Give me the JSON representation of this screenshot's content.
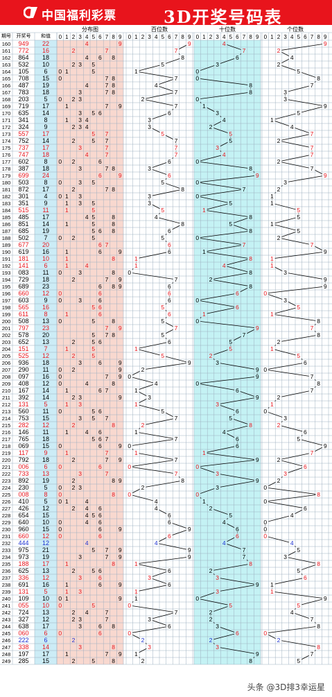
{
  "header": {
    "brand": "中国福利彩票",
    "title": "3D开奖号码表",
    "logo_icon": "welfare-lottery-logo-icon"
  },
  "watermark": "头条 @3D排3幸运星",
  "colors": {
    "header_red": "#e8141c",
    "red_number": "#e8141c",
    "blue_number": "#1a2fd0",
    "issue_black": "#000000",
    "dist_bg": "#f8d8cf",
    "tens_bg": "#c4f2f4",
    "sum_bg": "#ccecf6",
    "grid_line": "#9eb0c0"
  },
  "chart_data": {
    "type": "table",
    "columns": [
      "期号",
      "开奖号",
      "和值",
      "分布图",
      "百位数",
      "十位数",
      "个位数"
    ],
    "digit_headers": [
      "0",
      "1",
      "2",
      "3",
      "4",
      "5",
      "6",
      "7",
      "8",
      "9"
    ],
    "rows": [
      {
        "issue": "160",
        "draw": "949",
        "sum": "22"
      },
      {
        "issue": "161",
        "draw": "772",
        "sum": "16"
      },
      {
        "issue": "162",
        "draw": "864",
        "sum": "18"
      },
      {
        "issue": "163",
        "draw": "532",
        "sum": "10"
      },
      {
        "issue": "164",
        "draw": "105",
        "sum": "6"
      },
      {
        "issue": "165",
        "draw": "708",
        "sum": "15"
      },
      {
        "issue": "166",
        "draw": "487",
        "sum": "19"
      },
      {
        "issue": "167",
        "draw": "783",
        "sum": "18"
      },
      {
        "issue": "168",
        "draw": "203",
        "sum": "5"
      },
      {
        "issue": "169",
        "draw": "719",
        "sum": "17"
      },
      {
        "issue": "170",
        "draw": "635",
        "sum": "14"
      },
      {
        "issue": "171",
        "draw": "341",
        "sum": "8"
      },
      {
        "issue": "172",
        "draw": "324",
        "sum": "9"
      },
      {
        "issue": "173",
        "draw": "557",
        "sum": "17"
      },
      {
        "issue": "174",
        "draw": "752",
        "sum": "14"
      },
      {
        "issue": "175",
        "draw": "737",
        "sum": "17"
      },
      {
        "issue": "176",
        "draw": "747",
        "sum": "18"
      },
      {
        "issue": "177",
        "draw": "602",
        "sum": "8"
      },
      {
        "issue": "178",
        "draw": "387",
        "sum": "18"
      },
      {
        "issue": "179",
        "draw": "699",
        "sum": "24"
      },
      {
        "issue": "180",
        "draw": "503",
        "sum": "8"
      },
      {
        "issue": "181",
        "draw": "872",
        "sum": "17"
      },
      {
        "issue": "182",
        "draw": "301",
        "sum": "4"
      },
      {
        "issue": "183",
        "draw": "351",
        "sum": "9"
      },
      {
        "issue": "184",
        "draw": "515",
        "sum": "11"
      },
      {
        "issue": "185",
        "draw": "485",
        "sum": "17"
      },
      {
        "issue": "186",
        "draw": "851",
        "sum": "14"
      },
      {
        "issue": "187",
        "draw": "685",
        "sum": "19"
      },
      {
        "issue": "188",
        "draw": "502",
        "sum": "7"
      },
      {
        "issue": "189",
        "draw": "677",
        "sum": "20"
      },
      {
        "issue": "190",
        "draw": "619",
        "sum": "16"
      },
      {
        "issue": "191",
        "draw": "181",
        "sum": "10"
      },
      {
        "issue": "192",
        "draw": "141",
        "sum": "6"
      },
      {
        "issue": "193",
        "draw": "083",
        "sum": "11"
      },
      {
        "issue": "194",
        "draw": "729",
        "sum": "18"
      },
      {
        "issue": "195",
        "draw": "689",
        "sum": "23"
      },
      {
        "issue": "196",
        "draw": "660",
        "sum": "12"
      },
      {
        "issue": "197",
        "draw": "603",
        "sum": "9"
      },
      {
        "issue": "198",
        "draw": "565",
        "sum": "16"
      },
      {
        "issue": "199",
        "draw": "611",
        "sum": "8"
      },
      {
        "issue": "200",
        "draw": "508",
        "sum": "13"
      },
      {
        "issue": "201",
        "draw": "797",
        "sum": "23"
      },
      {
        "issue": "202",
        "draw": "578",
        "sum": "20"
      },
      {
        "issue": "203",
        "draw": "652",
        "sum": "13"
      },
      {
        "issue": "204",
        "draw": "151",
        "sum": "7"
      },
      {
        "issue": "205",
        "draw": "525",
        "sum": "12"
      },
      {
        "issue": "206",
        "draw": "936",
        "sum": "18"
      },
      {
        "issue": "207",
        "draw": "290",
        "sum": "11"
      },
      {
        "issue": "208",
        "draw": "097",
        "sum": "16"
      },
      {
        "issue": "209",
        "draw": "408",
        "sum": "12"
      },
      {
        "issue": "210",
        "draw": "167",
        "sum": "14"
      },
      {
        "issue": "211",
        "draw": "392",
        "sum": "14"
      },
      {
        "issue": "212",
        "draw": "131",
        "sum": "5"
      },
      {
        "issue": "213",
        "draw": "560",
        "sum": "11"
      },
      {
        "issue": "214",
        "draw": "753",
        "sum": "15"
      },
      {
        "issue": "215",
        "draw": "282",
        "sum": "12"
      },
      {
        "issue": "216",
        "draw": "146",
        "sum": "11"
      },
      {
        "issue": "217",
        "draw": "765",
        "sum": "18"
      },
      {
        "issue": "218",
        "draw": "069",
        "sum": "15"
      },
      {
        "issue": "219",
        "draw": "117",
        "sum": "9"
      },
      {
        "issue": "220",
        "draw": "792",
        "sum": "18"
      },
      {
        "issue": "221",
        "draw": "006",
        "sum": "6"
      },
      {
        "issue": "222",
        "draw": "733",
        "sum": "13"
      },
      {
        "issue": "223",
        "draw": "892",
        "sum": "19"
      },
      {
        "issue": "224",
        "draw": "230",
        "sum": "5"
      },
      {
        "issue": "225",
        "draw": "008",
        "sum": "8"
      },
      {
        "issue": "226",
        "draw": "410",
        "sum": "5"
      },
      {
        "issue": "227",
        "draw": "426",
        "sum": "12"
      },
      {
        "issue": "228",
        "draw": "654",
        "sum": "15"
      },
      {
        "issue": "229",
        "draw": "640",
        "sum": "10"
      },
      {
        "issue": "230",
        "draw": "960",
        "sum": "15"
      },
      {
        "issue": "231",
        "draw": "660",
        "sum": "12"
      },
      {
        "issue": "232",
        "draw": "444",
        "sum": "12"
      },
      {
        "issue": "233",
        "draw": "975",
        "sum": "21"
      },
      {
        "issue": "234",
        "draw": "973",
        "sum": "19"
      },
      {
        "issue": "235",
        "draw": "188",
        "sum": "17"
      },
      {
        "issue": "236",
        "draw": "625",
        "sum": "13"
      },
      {
        "issue": "237",
        "draw": "336",
        "sum": "12"
      },
      {
        "issue": "238",
        "draw": "691",
        "sum": "16"
      },
      {
        "issue": "239",
        "draw": "131",
        "sum": "5"
      },
      {
        "issue": "240",
        "draw": "109",
        "sum": "10"
      },
      {
        "issue": "241",
        "draw": "055",
        "sum": "10"
      },
      {
        "issue": "242",
        "draw": "724",
        "sum": "13"
      },
      {
        "issue": "243",
        "draw": "327",
        "sum": "12"
      },
      {
        "issue": "244",
        "draw": "638",
        "sum": "17"
      },
      {
        "issue": "245",
        "draw": "060",
        "sum": "6"
      },
      {
        "issue": "246",
        "draw": "222",
        "sum": "6"
      },
      {
        "issue": "247",
        "draw": "338",
        "sum": "14"
      },
      {
        "issue": "248",
        "draw": "197",
        "sum": "17"
      },
      {
        "issue": "249",
        "draw": "285",
        "sum": "15"
      }
    ]
  }
}
